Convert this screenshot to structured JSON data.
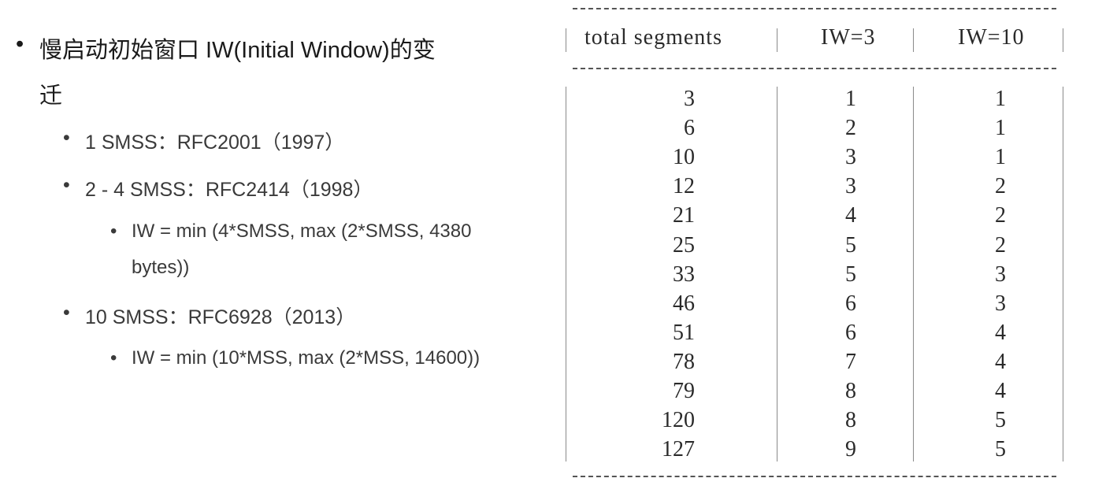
{
  "bullets": {
    "title_line1": "慢启动初始窗口 IW(Initial Window)的变",
    "title_line2": "迁",
    "items": [
      {
        "text": "1 SMSS：RFC2001（1997）"
      },
      {
        "text": "2 - 4 SMSS：RFC2414（1998）",
        "sub_line1": "IW = min (4*SMSS, max (2*SMSS, 4380",
        "sub_line2": "bytes))"
      },
      {
        "text": "10 SMSS：RFC6928（2013）",
        "sub_line1": "IW = min (10*MSS, max (2*MSS, 14600))"
      }
    ]
  },
  "table": {
    "headers": [
      "total segments",
      "IW=3",
      "IW=10"
    ],
    "rows": [
      [
        "3",
        "1",
        "1"
      ],
      [
        "6",
        "2",
        "1"
      ],
      [
        "10",
        "3",
        "1"
      ],
      [
        "12",
        "3",
        "2"
      ],
      [
        "21",
        "4",
        "2"
      ],
      [
        "25",
        "5",
        "2"
      ],
      [
        "33",
        "5",
        "3"
      ],
      [
        "46",
        "6",
        "3"
      ],
      [
        "51",
        "6",
        "4"
      ],
      [
        "78",
        "7",
        "4"
      ],
      [
        "79",
        "8",
        "4"
      ],
      [
        "120",
        "8",
        "5"
      ],
      [
        "127",
        "9",
        "5"
      ]
    ]
  }
}
